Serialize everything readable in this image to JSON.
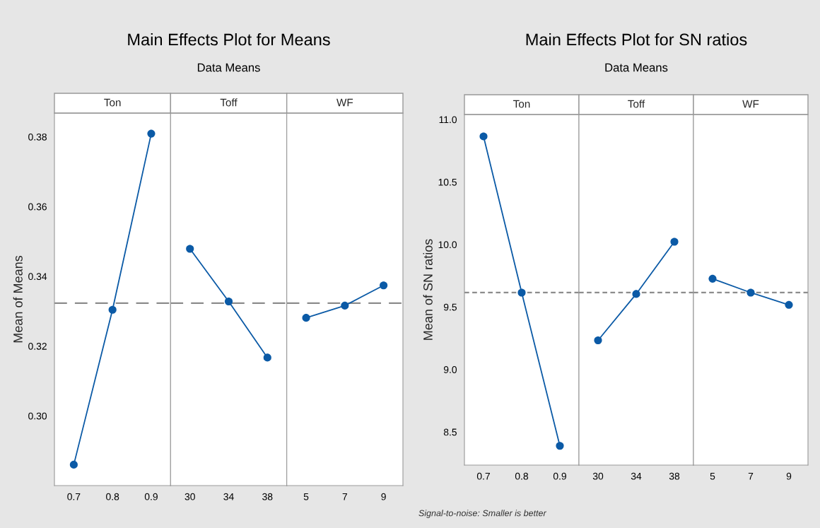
{
  "chart_data": [
    {
      "type": "line",
      "title": "Ton",
      "ylabel": "Mean of Means",
      "annotations": [
        "Main Effects Plot for Means",
        "Data Means"
      ],
      "categories": [
        "0.7",
        "0.8",
        "0.9"
      ],
      "values": [
        0.286,
        0.3304,
        0.3809
      ],
      "color": "#0b5aa6",
      "ylim": [
        0.28,
        0.3868
      ],
      "yticks": [
        {
          "value": 0.3,
          "label": "0.30"
        },
        {
          "value": 0.32,
          "label": "0.32"
        },
        {
          "value": 0.34,
          "label": "0.34"
        },
        {
          "value": 0.36,
          "label": "0.36"
        },
        {
          "value": 0.38,
          "label": "0.38"
        }
      ],
      "ref_lines": [
        {
          "axis": "y",
          "value": 0.3323,
          "color": "#8c8c8c",
          "line_style": "dashed"
        }
      ],
      "marker": "circle",
      "line_style": "solid",
      "grid": false,
      "legend": false
    },
    {
      "type": "line",
      "title": "Toff",
      "categories": [
        "30",
        "34",
        "38"
      ],
      "values": [
        0.3479,
        0.3328,
        0.3167
      ],
      "color": "#0b5aa6",
      "ylim": [
        0.28,
        0.3868
      ],
      "tick_labels": "x",
      "ref_lines": [
        {
          "axis": "y",
          "value": 0.3323,
          "color": "#8c8c8c",
          "line_style": "dashed"
        }
      ],
      "marker": "circle",
      "line_style": "solid",
      "grid": false,
      "legend": false
    },
    {
      "type": "line",
      "title": "WF",
      "categories": [
        "5",
        "7",
        "9"
      ],
      "values": [
        0.3281,
        0.3316,
        0.3374
      ],
      "color": "#0b5aa6",
      "ylim": [
        0.28,
        0.3868
      ],
      "tick_labels": "x",
      "ref_lines": [
        {
          "axis": "y",
          "value": 0.3323,
          "color": "#8c8c8c",
          "line_style": "dashed"
        }
      ],
      "marker": "circle",
      "line_style": "solid",
      "grid": false,
      "legend": false
    },
    {
      "type": "line",
      "title": "Ton",
      "ylabel": "Mean of SN ratios",
      "annotations": [
        "Main Effects Plot for SN ratios",
        "Data Means",
        "Signal-to-noise: Smaller is better"
      ],
      "categories": [
        "0.7",
        "0.8",
        "0.9"
      ],
      "values": [
        10.865,
        9.615,
        8.389
      ],
      "color": "#0b5aa6",
      "ylim": [
        8.235,
        11.04
      ],
      "yticks": [
        {
          "value": 8.5,
          "label": "8.5"
        },
        {
          "value": 9,
          "label": "9.0"
        },
        {
          "value": 9.5,
          "label": "9.5"
        },
        {
          "value": 10,
          "label": "10.0"
        },
        {
          "value": 10.5,
          "label": "10.5"
        },
        {
          "value": 11,
          "label": "11.0"
        }
      ],
      "ref_lines": [
        {
          "axis": "y",
          "value": 9.615,
          "color": "#8c8c8c",
          "line_style": "dotted"
        }
      ],
      "marker": "circle",
      "line_style": "solid",
      "grid": false,
      "legend": false
    },
    {
      "type": "line",
      "title": "Toff",
      "categories": [
        "30",
        "34",
        "38"
      ],
      "values": [
        9.233,
        9.604,
        10.022
      ],
      "color": "#0b5aa6",
      "ylim": [
        8.235,
        11.04
      ],
      "tick_labels": "x",
      "ref_lines": [
        {
          "axis": "y",
          "value": 9.615,
          "color": "#8c8c8c",
          "line_style": "dotted"
        }
      ],
      "marker": "circle",
      "line_style": "solid",
      "grid": false,
      "legend": false
    },
    {
      "type": "line",
      "title": "WF",
      "categories": [
        "5",
        "7",
        "9"
      ],
      "values": [
        9.726,
        9.615,
        9.517
      ],
      "color": "#0b5aa6",
      "ylim": [
        8.235,
        11.04
      ],
      "tick_labels": "x",
      "ref_lines": [
        {
          "axis": "y",
          "value": 9.615,
          "color": "#8c8c8c",
          "line_style": "dotted"
        }
      ],
      "marker": "circle",
      "line_style": "solid",
      "grid": false,
      "legend": false
    }
  ]
}
